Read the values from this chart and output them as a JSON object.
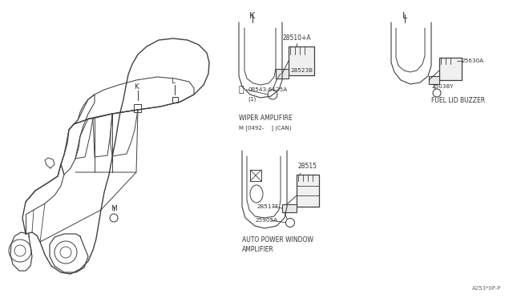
{
  "bg_color": "#ffffff",
  "line_color": "#404040",
  "text_color": "#333333",
  "fig_width": 6.4,
  "fig_height": 3.72,
  "diagram_ref": "A253*0P-P",
  "labels": {
    "K_section": "K",
    "L_section": "L",
    "K_car": "K",
    "L_car": "L",
    "M_car": "M",
    "part_28510": "28510+A",
    "part_28523": "28523B",
    "part_08543": "08543-6125A",
    "part_08543_sub": "(1)",
    "part_25630": "25630A",
    "part_25038": "25038Y",
    "part_28515": "28515",
    "part_28517": "28517F",
    "part_25905": "25905A",
    "wiper_label1": "WIPER AMPLIFIRE",
    "wiper_label2": "M [0492-    ] (CAN)",
    "fuel_label": "FUEL LID BUZZER",
    "window_label1": "AUTO POWER WINDOW",
    "window_label2": "AMPLIFIER"
  }
}
